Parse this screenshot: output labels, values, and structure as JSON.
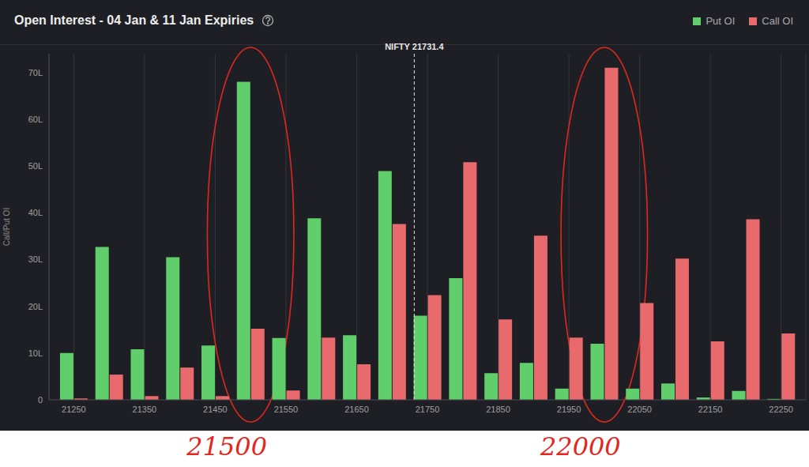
{
  "chart_data": {
    "type": "bar",
    "title": "Open Interest - 04 Jan & 11 Jan Expiries",
    "ylabel": "Call/Put OI",
    "x": [
      21250,
      21300,
      21350,
      21400,
      21450,
      21500,
      21550,
      21600,
      21650,
      21700,
      21750,
      21800,
      21850,
      21900,
      21950,
      22000,
      22050,
      22100,
      22150,
      22200,
      22250
    ],
    "series": [
      {
        "name": "Put OI",
        "color": "#5fce6b",
        "values": [
          10,
          32.7,
          10.8,
          30.5,
          11.6,
          68,
          13.2,
          38.8,
          13.8,
          48.9,
          18,
          26,
          5.7,
          7.9,
          2.4,
          12,
          2.4,
          3.5,
          0.5,
          1.9,
          0.2
        ]
      },
      {
        "name": "Call OI",
        "color": "#e96a6c",
        "values": [
          0.3,
          5.4,
          0.8,
          6.9,
          0.8,
          15.2,
          2,
          13.3,
          7.6,
          37.6,
          22.4,
          50.8,
          17.2,
          35.1,
          13.3,
          71,
          20.7,
          30.2,
          12.5,
          38.6,
          14.2
        ]
      }
    ],
    "xlim": [
      21215,
      22285
    ],
    "xticks": [
      21250,
      21350,
      21450,
      21550,
      21650,
      21750,
      21850,
      21950,
      22050,
      22150,
      22250
    ],
    "ylim": [
      0,
      74
    ],
    "yticks": [
      0,
      {
        "value": 10,
        "label": "10L"
      },
      {
        "value": 20,
        "label": "20L"
      },
      {
        "value": 30,
        "label": "30L"
      },
      {
        "value": 40,
        "label": "40L"
      },
      {
        "value": 50,
        "label": "50L"
      },
      {
        "value": 60,
        "label": "60L"
      },
      {
        "value": 70,
        "label": "70L"
      }
    ],
    "grid": true,
    "legend": "top right",
    "reference_line": {
      "x": 21731.4,
      "label": "NIFTY 21731.4"
    },
    "annotations": [
      {
        "text": "21500",
        "x": 21500
      },
      {
        "text": "22000",
        "x": 22000
      }
    ]
  }
}
